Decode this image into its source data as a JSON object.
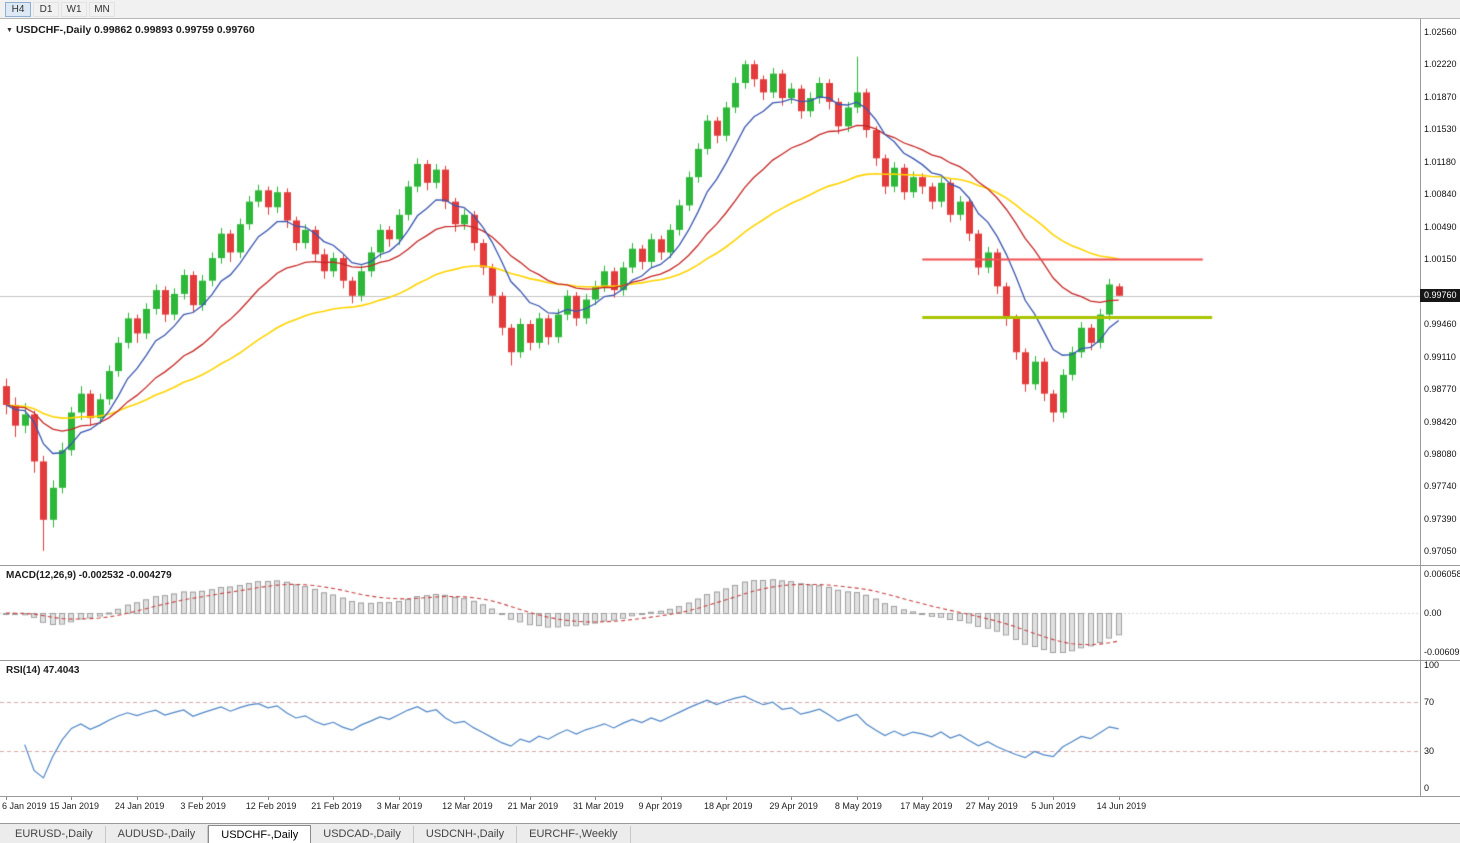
{
  "toolbar": {
    "timeframes": [
      {
        "label": "H4",
        "active": true
      },
      {
        "label": "D1",
        "active": false
      },
      {
        "label": "W1",
        "active": false
      },
      {
        "label": "MN",
        "active": false
      }
    ]
  },
  "chart": {
    "title_symbol": "USDCHF-,Daily",
    "ohlc_text": "0.99862 0.99893 0.99759 0.99760",
    "price_tag": "0.99760",
    "current_price": 0.9976,
    "axis_labels": [
      "1.02560",
      "1.02220",
      "1.01870",
      "1.01530",
      "1.01180",
      "1.00840",
      "1.00490",
      "1.00150",
      "0.99460",
      "0.99110",
      "0.98770",
      "0.98420",
      "0.98080",
      "0.97740",
      "0.97390",
      "0.97050"
    ],
    "hlines": [
      {
        "name": "resistance-line",
        "price": 1.0015,
        "color": "#f05050",
        "width": 2,
        "from_bar": 98,
        "to_bar": 128
      },
      {
        "name": "support-line",
        "price": 0.9953,
        "color": "#a9c400",
        "width": 3,
        "from_bar": 98,
        "to_bar": 129
      }
    ],
    "colors": {
      "bull": "#2eb83a",
      "bear": "#e33b3b",
      "ma_fast": "#3a57b0",
      "ma_mid": "#c62828",
      "ma_slow": "#ffd400",
      "price_line": "#c4c4c4",
      "macd_histogram_fill": "#e0e0e0",
      "macd_histogram_stroke": "#a0a0a0",
      "macd_signal": "#c94444",
      "rsi_line": "#4f86c6",
      "rsi_levels": "#d9a9a9"
    }
  },
  "macd": {
    "label": "MACD(12,26,9) -0.002532 -0.004279",
    "axis_labels": [
      "0.006058",
      "0.00",
      "-0.006091"
    ],
    "fast": 12,
    "slow": 26,
    "signal": 9
  },
  "rsi": {
    "label": "RSI(14) 47.4043",
    "axis_labels": [
      "100",
      "70",
      "30",
      "0"
    ],
    "levels": [
      70,
      30
    ],
    "period": 14
  },
  "time_axis": {
    "bars_per_label": 7,
    "labels": [
      "6 Jan 2019",
      "15 Jan 2019",
      "24 Jan 2019",
      "3 Feb 2019",
      "12 Feb 2019",
      "21 Feb 2019",
      "3 Mar 2019",
      "12 Mar 2019",
      "21 Mar 2019",
      "31 Mar 2019",
      "9 Apr 2019",
      "18 Apr 2019",
      "29 Apr 2019",
      "8 May 2019",
      "17 May 2019",
      "27 May 2019",
      "5 Jun 2019",
      "14 Jun 2019"
    ]
  },
  "tabs": [
    {
      "label": "EURUSD-,Daily",
      "active": false
    },
    {
      "label": "AUDUSD-,Daily",
      "active": false
    },
    {
      "label": "USDCHF-,Daily",
      "active": true
    },
    {
      "label": "USDCAD-,Daily",
      "active": false
    },
    {
      "label": "USDCNH-,Daily",
      "active": false
    },
    {
      "label": "EURCHF-,Weekly",
      "active": false
    }
  ],
  "chart_data": {
    "type": "candlestick",
    "symbol": "USDCHF",
    "timeframe": "Daily",
    "ylim": [
      0.969,
      1.027
    ],
    "moving_averages": [
      {
        "period": 8,
        "color": "#3a57b0"
      },
      {
        "period": 20,
        "color": "#c62828"
      },
      {
        "period": 45,
        "color": "#ffd400"
      }
    ],
    "ohlc": [
      [
        0.988,
        0.9888,
        0.985,
        0.986
      ],
      [
        0.986,
        0.9868,
        0.9826,
        0.9838
      ],
      [
        0.9838,
        0.9862,
        0.983,
        0.985
      ],
      [
        0.985,
        0.9854,
        0.9788,
        0.98
      ],
      [
        0.98,
        0.9806,
        0.9705,
        0.9738
      ],
      [
        0.9738,
        0.978,
        0.973,
        0.9772
      ],
      [
        0.9772,
        0.982,
        0.9766,
        0.9812
      ],
      [
        0.9812,
        0.9858,
        0.9806,
        0.9852
      ],
      [
        0.9852,
        0.988,
        0.9844,
        0.9872
      ],
      [
        0.9872,
        0.9876,
        0.9838,
        0.9846
      ],
      [
        0.9846,
        0.9872,
        0.984,
        0.9866
      ],
      [
        0.9866,
        0.9902,
        0.986,
        0.9896
      ],
      [
        0.9896,
        0.9932,
        0.989,
        0.9926
      ],
      [
        0.9926,
        0.9958,
        0.992,
        0.9952
      ],
      [
        0.9952,
        0.9956,
        0.9926,
        0.9936
      ],
      [
        0.9936,
        0.9968,
        0.993,
        0.9962
      ],
      [
        0.9962,
        0.9988,
        0.9956,
        0.9982
      ],
      [
        0.9982,
        0.9986,
        0.9948,
        0.9956
      ],
      [
        0.9956,
        0.9984,
        0.995,
        0.9978
      ],
      [
        0.9978,
        1.0004,
        0.9972,
        0.9998
      ],
      [
        0.9998,
        1.0002,
        0.9958,
        0.9966
      ],
      [
        0.9966,
        0.9998,
        0.996,
        0.9992
      ],
      [
        0.9992,
        1.0022,
        0.9986,
        1.0016
      ],
      [
        1.0016,
        1.0048,
        1.001,
        1.0042
      ],
      [
        1.0042,
        1.0046,
        1.0012,
        1.0022
      ],
      [
        1.0022,
        1.0058,
        1.0016,
        1.0052
      ],
      [
        1.0052,
        1.0082,
        1.0046,
        1.0076
      ],
      [
        1.0076,
        1.0094,
        1.007,
        1.0088
      ],
      [
        1.0088,
        1.0092,
        1.0062,
        1.007
      ],
      [
        1.007,
        1.0092,
        1.0064,
        1.0086
      ],
      [
        1.0086,
        1.009,
        1.0048,
        1.0056
      ],
      [
        1.0056,
        1.006,
        1.0024,
        1.0032
      ],
      [
        1.0032,
        1.0052,
        1.0026,
        1.0046
      ],
      [
        1.0046,
        1.005,
        1.0012,
        1.002
      ],
      [
        1.002,
        1.0026,
        0.9994,
        1.0002
      ],
      [
        1.0002,
        1.0022,
        0.9996,
        1.0016
      ],
      [
        1.0016,
        1.002,
        0.9984,
        0.9992
      ],
      [
        0.9992,
        0.9996,
        0.9968,
        0.9976
      ],
      [
        0.9976,
        1.0008,
        0.997,
        1.0002
      ],
      [
        1.0002,
        1.0028,
        0.9996,
        1.0022
      ],
      [
        1.0022,
        1.0052,
        1.0016,
        1.0046
      ],
      [
        1.0046,
        1.005,
        1.0028,
        1.0036
      ],
      [
        1.0036,
        1.0068,
        1.003,
        1.0062
      ],
      [
        1.0062,
        1.0098,
        1.0056,
        1.0092
      ],
      [
        1.0092,
        1.0122,
        1.0086,
        1.0116
      ],
      [
        1.0116,
        1.012,
        1.0088,
        1.0096
      ],
      [
        1.0096,
        1.0116,
        1.009,
        1.011
      ],
      [
        1.011,
        1.0114,
        1.0068,
        1.0076
      ],
      [
        1.0076,
        1.008,
        1.0044,
        1.0052
      ],
      [
        1.0052,
        1.0068,
        1.0046,
        1.0062
      ],
      [
        1.0062,
        1.0066,
        1.0024,
        1.0032
      ],
      [
        1.0032,
        1.0036,
        0.9998,
        1.0006
      ],
      [
        1.0006,
        1.001,
        0.9968,
        0.9976
      ],
      [
        0.9976,
        0.998,
        0.9934,
        0.9942
      ],
      [
        0.9942,
        0.9946,
        0.9902,
        0.9916
      ],
      [
        0.9916,
        0.9952,
        0.991,
        0.9946
      ],
      [
        0.9946,
        0.995,
        0.9918,
        0.9926
      ],
      [
        0.9926,
        0.9958,
        0.992,
        0.9952
      ],
      [
        0.9952,
        0.9956,
        0.9924,
        0.9932
      ],
      [
        0.9932,
        0.9962,
        0.9926,
        0.9956
      ],
      [
        0.9956,
        0.9982,
        0.995,
        0.9976
      ],
      [
        0.9976,
        0.998,
        0.9944,
        0.9952
      ],
      [
        0.9952,
        0.9978,
        0.9946,
        0.9972
      ],
      [
        0.9972,
        0.9992,
        0.9966,
        0.9986
      ],
      [
        0.9986,
        1.0008,
        0.998,
        1.0002
      ],
      [
        1.0002,
        1.0006,
        0.9974,
        0.9982
      ],
      [
        0.9982,
        1.0012,
        0.9976,
        1.0006
      ],
      [
        1.0006,
        1.0032,
        1.0,
        1.0026
      ],
      [
        1.0026,
        1.003,
        1.0004,
        1.0012
      ],
      [
        1.0012,
        1.0042,
        1.0006,
        1.0036
      ],
      [
        1.0036,
        1.004,
        1.0014,
        1.0022
      ],
      [
        1.0022,
        1.0052,
        1.0016,
        1.0046
      ],
      [
        1.0046,
        1.0078,
        1.004,
        1.0072
      ],
      [
        1.0072,
        1.0108,
        1.0066,
        1.0102
      ],
      [
        1.0102,
        1.0138,
        1.0096,
        1.0132
      ],
      [
        1.0132,
        1.0168,
        1.0126,
        1.0162
      ],
      [
        1.0162,
        1.0166,
        1.0138,
        1.0146
      ],
      [
        1.0146,
        1.0182,
        1.014,
        1.0176
      ],
      [
        1.0176,
        1.0208,
        1.017,
        1.0202
      ],
      [
        1.0202,
        1.0226,
        1.0196,
        1.0222
      ],
      [
        1.0222,
        1.0226,
        1.0198,
        1.0206
      ],
      [
        1.0206,
        1.021,
        1.0184,
        1.0192
      ],
      [
        1.0192,
        1.0218,
        1.0186,
        1.0212
      ],
      [
        1.0212,
        1.0216,
        1.0178,
        1.0186
      ],
      [
        1.0186,
        1.0202,
        1.018,
        1.0196
      ],
      [
        1.0196,
        1.02,
        1.0164,
        1.0172
      ],
      [
        1.0172,
        1.0192,
        1.0166,
        1.0186
      ],
      [
        1.0186,
        1.0208,
        1.018,
        1.0202
      ],
      [
        1.0202,
        1.0206,
        1.0174,
        1.0182
      ],
      [
        1.0182,
        1.0186,
        1.0148,
        1.0156
      ],
      [
        1.0156,
        1.0182,
        1.015,
        1.0176
      ],
      [
        1.0176,
        1.023,
        1.017,
        1.0192
      ],
      [
        1.0192,
        1.0196,
        1.0144,
        1.0152
      ],
      [
        1.0152,
        1.0156,
        1.0114,
        1.0122
      ],
      [
        1.0122,
        1.0126,
        1.0084,
        1.0092
      ],
      [
        1.0092,
        1.0118,
        1.0086,
        1.0112
      ],
      [
        1.0112,
        1.0116,
        1.0078,
        1.0086
      ],
      [
        1.0086,
        1.0108,
        1.008,
        1.0102
      ],
      [
        1.0102,
        1.0106,
        1.0084,
        1.0092
      ],
      [
        1.0092,
        1.0096,
        1.0068,
        1.0076
      ],
      [
        1.0076,
        1.0102,
        1.007,
        1.0096
      ],
      [
        1.0096,
        1.01,
        1.0054,
        1.0062
      ],
      [
        1.0062,
        1.0082,
        1.0056,
        1.0076
      ],
      [
        1.0076,
        1.008,
        1.0034,
        1.0042
      ],
      [
        1.0042,
        1.0046,
        0.9998,
        1.0006
      ],
      [
        1.0006,
        1.0028,
        1.0,
        1.0022
      ],
      [
        1.0022,
        1.0026,
        0.9978,
        0.9986
      ],
      [
        0.9986,
        0.999,
        0.9944,
        0.9952
      ],
      [
        0.9952,
        0.9956,
        0.9908,
        0.9916
      ],
      [
        0.9916,
        0.992,
        0.9874,
        0.9882
      ],
      [
        0.9882,
        0.9912,
        0.9876,
        0.9906
      ],
      [
        0.9906,
        0.991,
        0.9864,
        0.9872
      ],
      [
        0.9872,
        0.9876,
        0.9842,
        0.9852
      ],
      [
        0.9852,
        0.9898,
        0.9846,
        0.9892
      ],
      [
        0.9892,
        0.9922,
        0.9886,
        0.9916
      ],
      [
        0.9916,
        0.9948,
        0.991,
        0.9942
      ],
      [
        0.9942,
        0.9946,
        0.9918,
        0.9926
      ],
      [
        0.9926,
        0.9962,
        0.992,
        0.9956
      ],
      [
        0.9956,
        0.9994,
        0.995,
        0.9988
      ],
      [
        0.9986,
        0.9989,
        0.9976,
        0.9976
      ]
    ]
  }
}
